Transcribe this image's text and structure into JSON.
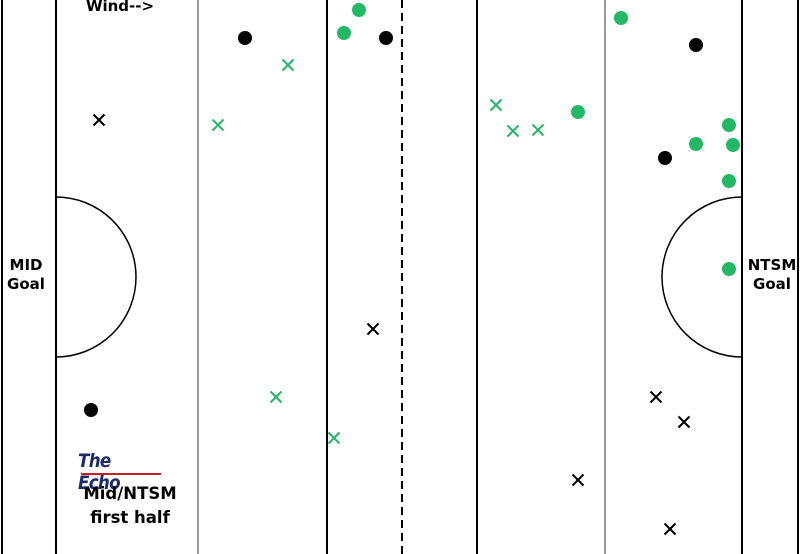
{
  "labels": {
    "wind": "Wind-->",
    "left_goal": [
      "MID",
      "Goal"
    ],
    "right_goal": [
      "NTSM",
      "Goal"
    ],
    "brand": "The Echo",
    "caption": [
      "Mid/NTSM",
      "first half"
    ]
  },
  "colors": {
    "team_black": "#000000",
    "team_green": "#22b866",
    "field_line": "#000000",
    "midfield_line": "#9a9a9a",
    "brand_text": "#1b2a6b",
    "brand_rule": "#c0222a"
  },
  "markers": [
    {
      "team": "black",
      "symbol": "circle"
    },
    {
      "team": "black",
      "symbol": "circle"
    },
    {
      "team": "black",
      "symbol": "circle"
    },
    {
      "team": "black",
      "symbol": "circle"
    },
    {
      "team": "black",
      "symbol": "circle"
    },
    {
      "team": "green",
      "symbol": "circle"
    },
    {
      "team": "green",
      "symbol": "circle"
    },
    {
      "team": "green",
      "symbol": "circle"
    },
    {
      "team": "green",
      "symbol": "circle"
    },
    {
      "team": "green",
      "symbol": "circle"
    },
    {
      "team": "green",
      "symbol": "circle"
    },
    {
      "team": "green",
      "symbol": "circle"
    },
    {
      "team": "green",
      "symbol": "circle"
    },
    {
      "team": "green",
      "symbol": "circle"
    },
    {
      "team": "black",
      "symbol": "x"
    },
    {
      "team": "black",
      "symbol": "x"
    },
    {
      "team": "black",
      "symbol": "x"
    },
    {
      "team": "black",
      "symbol": "x"
    },
    {
      "team": "black",
      "symbol": "x"
    },
    {
      "team": "black",
      "symbol": "x"
    },
    {
      "team": "green",
      "symbol": "x"
    },
    {
      "team": "green",
      "symbol": "x"
    },
    {
      "team": "green",
      "symbol": "x"
    },
    {
      "team": "green",
      "symbol": "x"
    },
    {
      "team": "green",
      "symbol": "x"
    },
    {
      "team": "green",
      "symbol": "x"
    },
    {
      "team": "green",
      "symbol": "x"
    }
  ]
}
